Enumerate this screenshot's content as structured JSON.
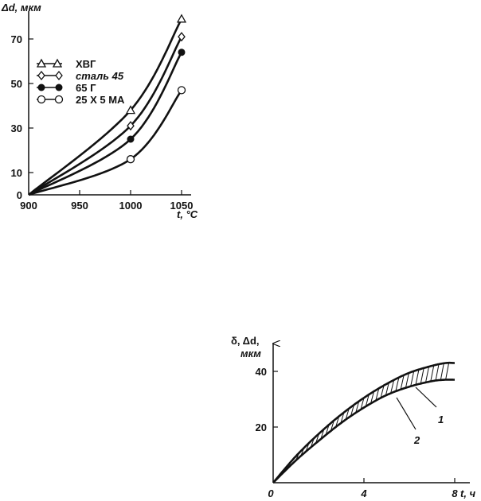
{
  "chart_data": [
    {
      "type": "line",
      "ylabel": "Δd, мкм",
      "xlabel": "t, °C",
      "xlim": [
        900,
        1050
      ],
      "ylim": [
        0,
        78
      ],
      "x_ticks": [
        "900",
        "950",
        "1000",
        "1050"
      ],
      "y_ticks": [
        "0",
        "10",
        "30",
        "50",
        "70"
      ],
      "legend_position": "top-left",
      "series": [
        {
          "name": "ХВГ",
          "marker": "triangle",
          "x": [
            900,
            1000,
            1050
          ],
          "y": [
            0,
            38,
            79
          ]
        },
        {
          "name": "сталь 45",
          "marker": "diamond",
          "x": [
            900,
            1000,
            1050
          ],
          "y": [
            0,
            31,
            71
          ]
        },
        {
          "name": "65 Г",
          "marker": "filled-circle",
          "x": [
            900,
            1000,
            1050
          ],
          "y": [
            0,
            25,
            64
          ]
        },
        {
          "name": "25 Х 5 МА",
          "marker": "open-circle",
          "x": [
            900,
            1000,
            1050
          ],
          "y": [
            0,
            16,
            47
          ]
        }
      ],
      "grid": false
    },
    {
      "type": "area",
      "ylabel_lines": [
        "δ, Δd,",
        "мкм"
      ],
      "xlabel": "t, ч",
      "xlim": [
        0,
        8
      ],
      "ylim": [
        0,
        45
      ],
      "x_ticks": [
        "0",
        "4",
        "8"
      ],
      "y_ticks": [
        "20",
        "40"
      ],
      "series": [
        {
          "name": "1",
          "x": [
            0,
            1,
            2,
            3,
            4,
            5,
            6,
            7,
            7.6,
            8
          ],
          "y": [
            0,
            9.5,
            17.5,
            24.5,
            30.5,
            35.5,
            39.5,
            42,
            43,
            43
          ]
        },
        {
          "name": "2",
          "x": [
            0,
            1,
            2,
            3,
            4,
            5,
            6,
            7,
            7.6,
            8
          ],
          "y": [
            0,
            8,
            15,
            21.5,
            27,
            31.5,
            34.5,
            36.5,
            37,
            37
          ]
        }
      ],
      "fill_between": "hatched",
      "grid": false
    }
  ]
}
